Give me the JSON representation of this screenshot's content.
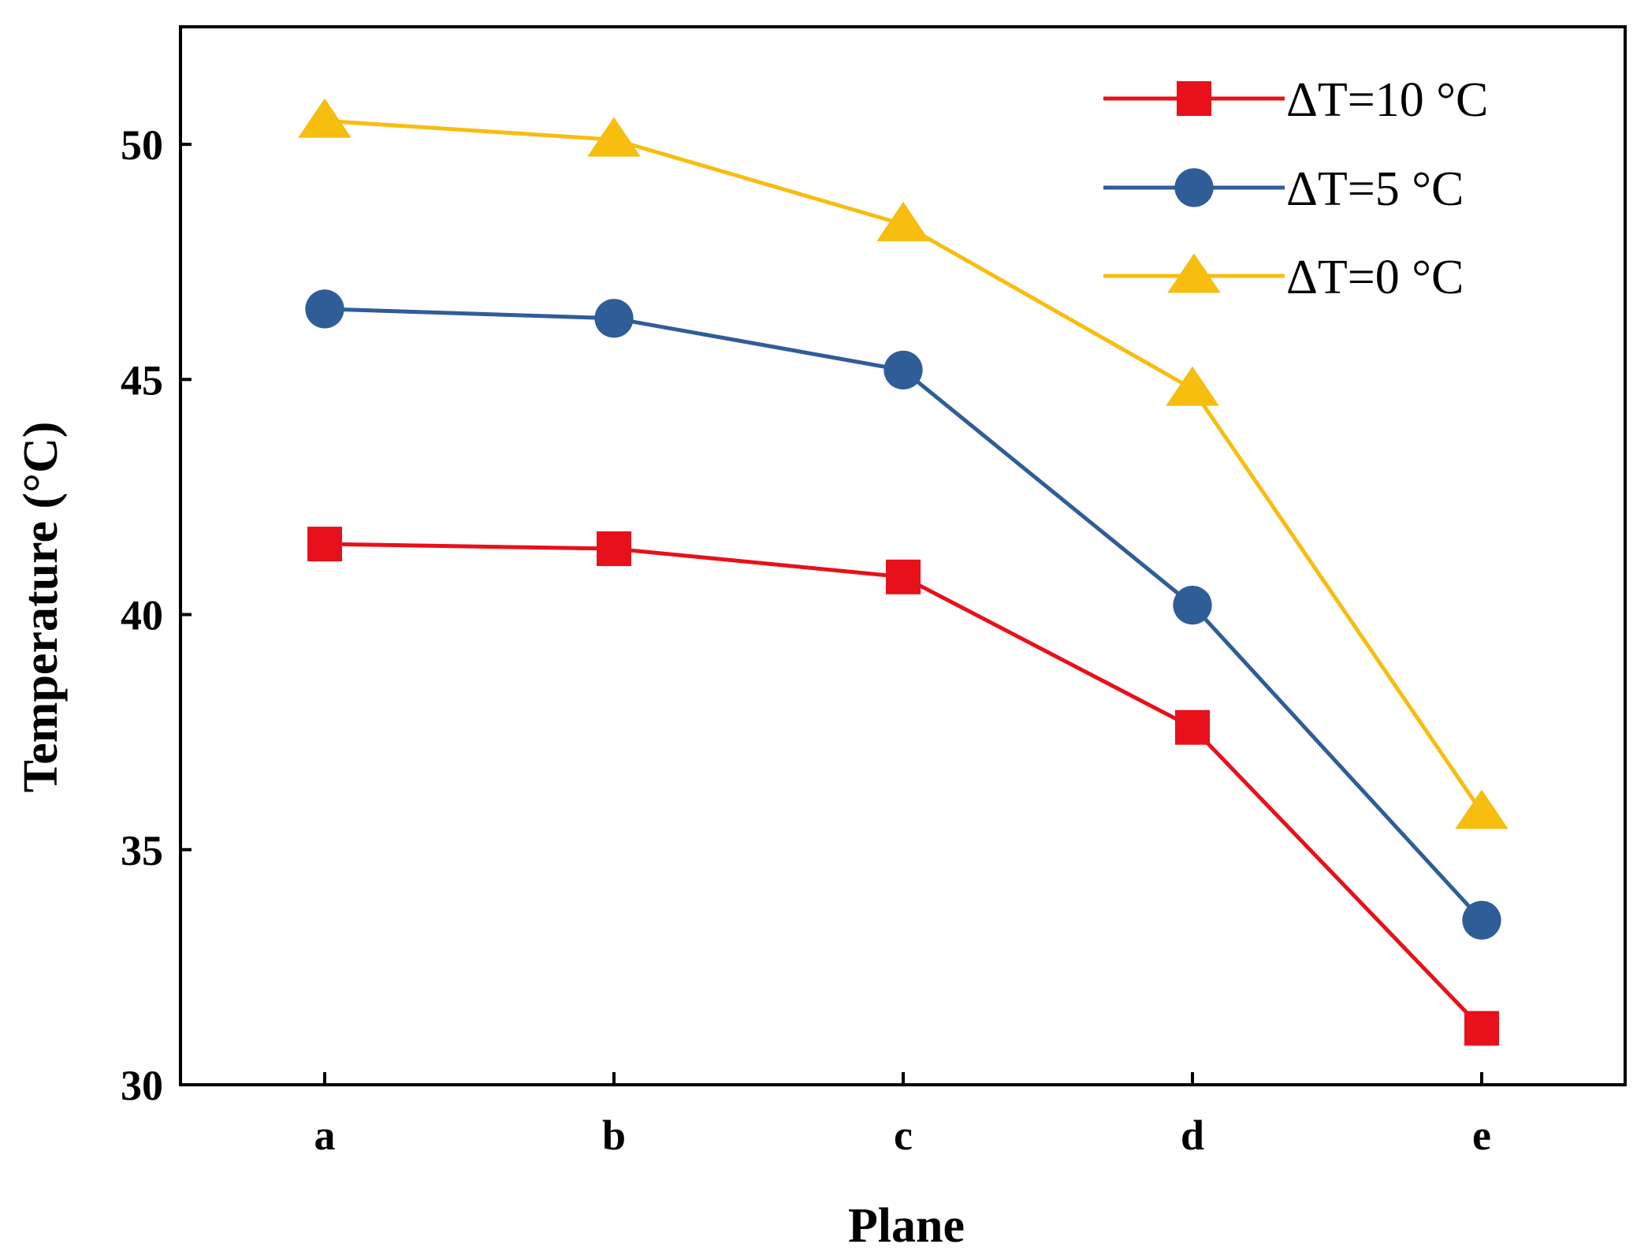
{
  "chart_data": {
    "type": "line",
    "title": "",
    "xlabel": "Plane",
    "ylabel": "Temperature (°C)",
    "categories": [
      "a",
      "b",
      "c",
      "d",
      "e"
    ],
    "ylim": [
      30,
      52.5
    ],
    "yticks": [
      30,
      35,
      40,
      45,
      50
    ],
    "grid": false,
    "legend_position": "top-right",
    "series": [
      {
        "name": "ΔT=10 °C",
        "marker": "square",
        "color": "#e8101a",
        "values": [
          41.5,
          41.4,
          40.8,
          37.6,
          31.2
        ]
      },
      {
        "name": "ΔT=5 °C",
        "marker": "circle",
        "color": "#2f5d97",
        "values": [
          46.5,
          46.3,
          45.2,
          40.2,
          33.5
        ]
      },
      {
        "name": "ΔT=0 °C",
        "marker": "triangle",
        "color": "#f7bd0f",
        "values": [
          50.5,
          50.1,
          48.3,
          44.8,
          35.8
        ]
      }
    ]
  }
}
